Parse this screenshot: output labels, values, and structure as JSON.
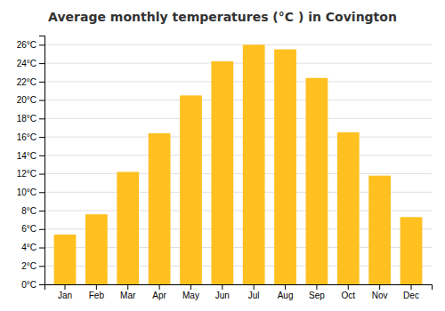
{
  "chart_data": {
    "type": "bar",
    "title": "Average monthly temperatures (°C ) in Covington",
    "categories": [
      "Jan",
      "Feb",
      "Mar",
      "Apr",
      "May",
      "Jun",
      "Jul",
      "Aug",
      "Sep",
      "Oct",
      "Nov",
      "Dec"
    ],
    "values": [
      5.4,
      7.6,
      12.2,
      16.4,
      20.5,
      24.2,
      26.0,
      25.5,
      22.4,
      16.5,
      11.8,
      7.3
    ],
    "color": "#FFC020",
    "ylim": [
      0,
      27
    ],
    "yticks": [
      {
        "value": 0,
        "label": "0°C"
      },
      {
        "value": 2,
        "label": "2°C"
      },
      {
        "value": 4,
        "label": "4°C"
      },
      {
        "value": 6,
        "label": "6°C"
      },
      {
        "value": 8,
        "label": "8°C"
      },
      {
        "value": 10,
        "label": "10°C"
      },
      {
        "value": 12,
        "label": "12°C"
      },
      {
        "value": 14,
        "label": "14°C"
      },
      {
        "value": 16,
        "label": "16°C"
      },
      {
        "value": 18,
        "label": "18°C"
      },
      {
        "value": 20,
        "label": "20°C"
      },
      {
        "value": 22,
        "label": "22°C"
      },
      {
        "value": 24,
        "label": "24°C"
      },
      {
        "value": 26,
        "label": "26°C"
      }
    ],
    "grid": true
  }
}
